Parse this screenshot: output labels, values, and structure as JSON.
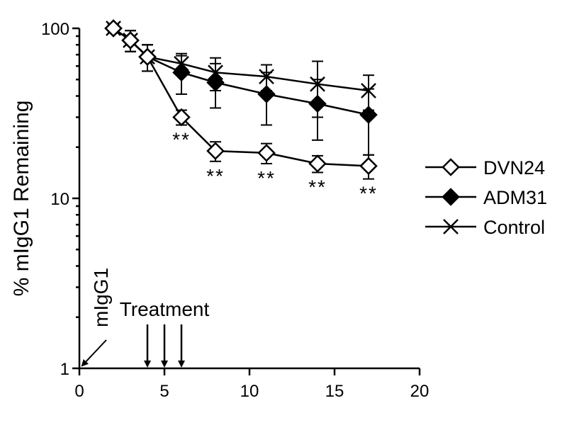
{
  "chart_data": {
    "type": "line",
    "title": "",
    "xlabel": "",
    "ylabel": "% mIgG1 Remaining",
    "yscale": "log",
    "xlim": [
      0,
      20
    ],
    "ylim": [
      1,
      100
    ],
    "x_ticks": [
      0,
      5,
      10,
      15,
      20
    ],
    "x_tick_labels": [
      "0",
      "5",
      "10",
      "15",
      "20"
    ],
    "y_ticks": [
      1,
      10,
      100
    ],
    "y_tick_labels": [
      "1",
      "10",
      "100"
    ],
    "grid": false,
    "legend_position": "right",
    "series": [
      {
        "name": "DVN24",
        "marker": "open-diamond",
        "x": [
          2,
          3,
          4,
          6,
          8,
          11,
          14,
          17
        ],
        "y": [
          100,
          85,
          68,
          30,
          19,
          18.5,
          16,
          15.5
        ],
        "err": [
          6,
          12,
          12,
          3,
          2.5,
          2.5,
          1.8,
          2.5
        ]
      },
      {
        "name": "ADM31",
        "marker": "filled-diamond",
        "x": [
          2,
          3,
          4,
          6,
          8,
          11,
          14,
          17
        ],
        "y": [
          100,
          85,
          68,
          55,
          48,
          41,
          36,
          31
        ],
        "err": [
          6,
          12,
          12,
          14,
          14,
          14,
          14,
          13
        ]
      },
      {
        "name": "Control",
        "marker": "x",
        "x": [
          2,
          3,
          4,
          6,
          8,
          11,
          14,
          17
        ],
        "y": [
          100,
          85,
          68,
          62,
          55,
          52,
          47,
          43
        ],
        "err": [
          6,
          12,
          12,
          9,
          12,
          9,
          17,
          10
        ]
      }
    ],
    "significance": [
      {
        "x": 6,
        "text": "**"
      },
      {
        "x": 8,
        "text": "**"
      },
      {
        "x": 11,
        "text": "**"
      },
      {
        "x": 14,
        "text": "**"
      },
      {
        "x": 17,
        "text": "**"
      }
    ],
    "annotations": {
      "injection_label": "mIgG1",
      "injection_x": 0,
      "treatment_label": "Treatment",
      "treatment_days": [
        4,
        5,
        6
      ]
    }
  }
}
